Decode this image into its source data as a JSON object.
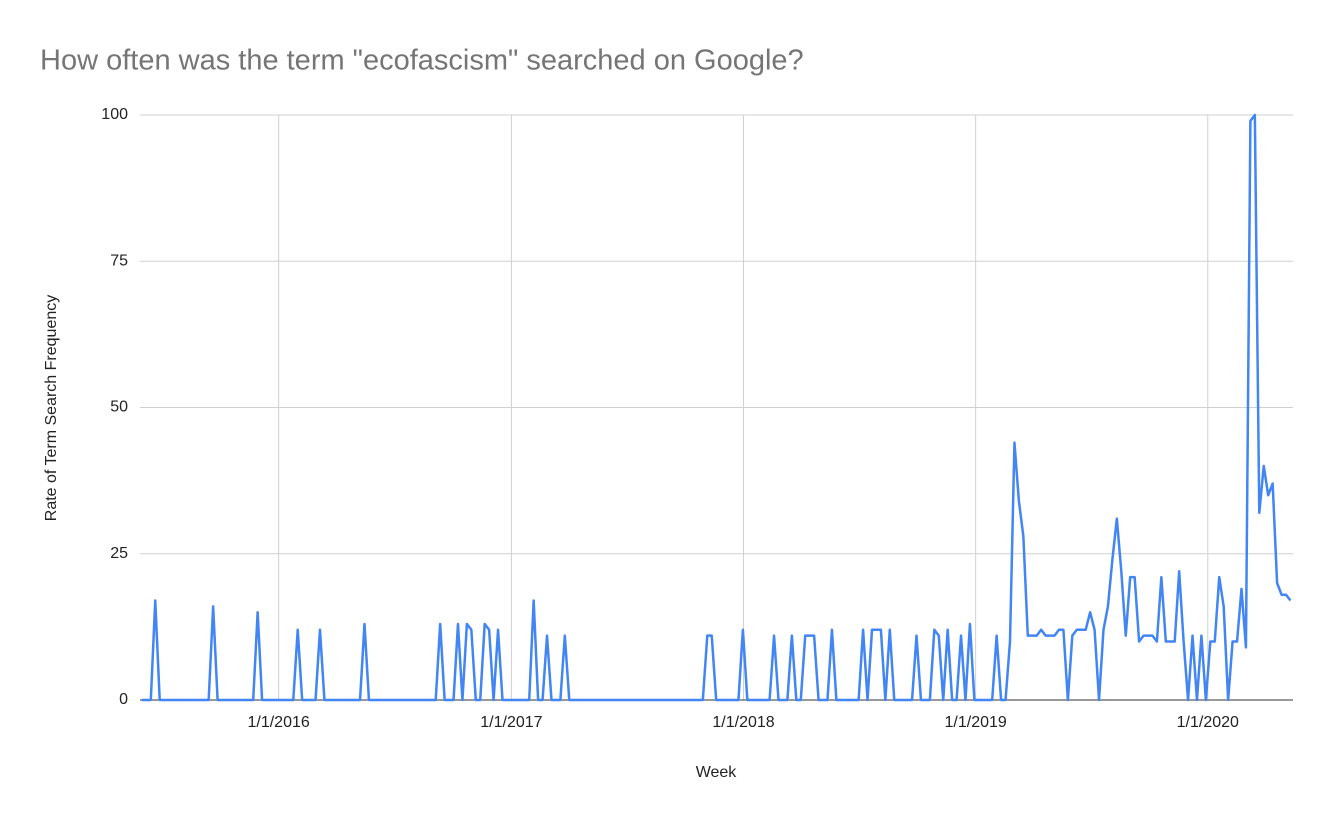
{
  "chart_data": {
    "type": "line",
    "title": "How often was the term \"ecofascism\" searched on Google?",
    "x_label": "Week",
    "y_label": "Rate of Term Search Frequency",
    "xlim": [
      "2015-05-28",
      "2020-05-14"
    ],
    "xticks": [
      {
        "value": "2016-01-01",
        "label": "1/1/2016"
      },
      {
        "value": "2017-01-01",
        "label": "1/1/2017"
      },
      {
        "value": "2018-01-01",
        "label": "1/1/2018"
      },
      {
        "value": "2019-01-01",
        "label": "1/1/2019"
      },
      {
        "value": "2020-01-01",
        "label": "1/1/2020"
      }
    ],
    "ylim": [
      0,
      100
    ],
    "yticks": [
      0,
      25,
      50,
      75,
      100
    ],
    "grid": true,
    "x": [
      "2015-05-31",
      "2015-06-14",
      "2015-06-21",
      "2015-06-28",
      "2015-09-13",
      "2015-09-20",
      "2015-09-27",
      "2015-11-22",
      "2015-11-29",
      "2015-12-06",
      "2016-01-24",
      "2016-01-31",
      "2016-02-07",
      "2016-02-28",
      "2016-03-06",
      "2016-03-13",
      "2016-05-08",
      "2016-05-15",
      "2016-05-22",
      "2016-09-04",
      "2016-09-11",
      "2016-09-18",
      "2016-10-02",
      "2016-10-09",
      "2016-10-16",
      "2016-10-23",
      "2016-10-30",
      "2016-11-06",
      "2016-11-13",
      "2016-11-20",
      "2016-11-27",
      "2016-12-04",
      "2016-12-11",
      "2016-12-18",
      "2017-01-29",
      "2017-02-05",
      "2017-02-12",
      "2017-02-19",
      "2017-02-26",
      "2017-03-05",
      "2017-03-19",
      "2017-03-26",
      "2017-04-02",
      "2017-10-29",
      "2017-11-05",
      "2017-11-12",
      "2017-11-19",
      "2017-12-24",
      "2017-12-31",
      "2018-01-07",
      "2018-02-11",
      "2018-02-18",
      "2018-02-25",
      "2018-03-11",
      "2018-03-18",
      "2018-03-25",
      "2018-04-01",
      "2018-04-08",
      "2018-04-15",
      "2018-04-22",
      "2018-04-29",
      "2018-05-13",
      "2018-05-20",
      "2018-05-27",
      "2018-07-01",
      "2018-07-08",
      "2018-07-15",
      "2018-07-22",
      "2018-07-29",
      "2018-08-05",
      "2018-08-12",
      "2018-08-19",
      "2018-08-26",
      "2018-09-23",
      "2018-09-30",
      "2018-10-07",
      "2018-10-21",
      "2018-10-28",
      "2018-11-04",
      "2018-11-11",
      "2018-11-18",
      "2018-11-25",
      "2018-12-02",
      "2018-12-09",
      "2018-12-16",
      "2018-12-23",
      "2018-12-30",
      "2019-01-27",
      "2019-02-03",
      "2019-02-10",
      "2019-02-17",
      "2019-02-24",
      "2019-03-03",
      "2019-03-10",
      "2019-03-17",
      "2019-03-24",
      "2019-03-31",
      "2019-04-07",
      "2019-04-14",
      "2019-04-21",
      "2019-04-28",
      "2019-05-05",
      "2019-05-12",
      "2019-05-19",
      "2019-05-26",
      "2019-06-02",
      "2019-06-09",
      "2019-06-16",
      "2019-06-23",
      "2019-06-30",
      "2019-07-07",
      "2019-07-14",
      "2019-07-21",
      "2019-07-28",
      "2019-08-04",
      "2019-08-11",
      "2019-08-18",
      "2019-08-25",
      "2019-09-01",
      "2019-09-08",
      "2019-09-15",
      "2019-09-22",
      "2019-09-29",
      "2019-10-06",
      "2019-10-13",
      "2019-10-20",
      "2019-10-27",
      "2019-11-03",
      "2019-11-10",
      "2019-11-17",
      "2019-11-24",
      "2019-12-01",
      "2019-12-08",
      "2019-12-15",
      "2019-12-22",
      "2019-12-29",
      "2020-01-05",
      "2020-01-12",
      "2020-01-19",
      "2020-01-26",
      "2020-02-02",
      "2020-02-09",
      "2020-02-16",
      "2020-02-23",
      "2020-03-01",
      "2020-03-08",
      "2020-03-15",
      "2020-03-22",
      "2020-03-29",
      "2020-04-05",
      "2020-04-12",
      "2020-04-19",
      "2020-04-26",
      "2020-05-03",
      "2020-05-10"
    ],
    "series": [
      {
        "name": "ecofascism",
        "color": "#4285f4",
        "values": [
          0,
          0,
          17,
          0,
          0,
          16,
          0,
          0,
          15,
          0,
          0,
          12,
          0,
          0,
          12,
          0,
          0,
          13,
          0,
          0,
          13,
          0,
          0,
          13,
          0,
          13,
          12,
          0,
          0,
          13,
          12,
          0,
          12,
          0,
          0,
          17,
          0,
          0,
          11,
          0,
          0,
          11,
          0,
          0,
          11,
          11,
          0,
          0,
          12,
          0,
          0,
          11,
          0,
          0,
          11,
          0,
          0,
          11,
          11,
          11,
          0,
          0,
          12,
          0,
          0,
          12,
          0,
          12,
          12,
          12,
          0,
          12,
          0,
          0,
          11,
          0,
          0,
          12,
          11,
          0,
          12,
          0,
          0,
          11,
          0,
          13,
          0,
          0,
          11,
          0,
          0,
          10,
          44,
          34,
          28,
          11,
          11,
          11,
          12,
          11,
          11,
          11,
          12,
          12,
          0,
          11,
          12,
          12,
          12,
          15,
          12,
          0,
          12,
          16,
          24,
          31,
          22,
          11,
          21,
          21,
          10,
          11,
          11,
          11,
          10,
          21,
          10,
          10,
          10,
          22,
          10,
          0,
          11,
          0,
          11,
          0,
          10,
          10,
          21,
          16,
          0,
          10,
          10,
          19,
          9,
          99,
          100,
          32,
          40,
          35,
          37,
          20,
          18,
          18,
          17
        ]
      }
    ]
  }
}
